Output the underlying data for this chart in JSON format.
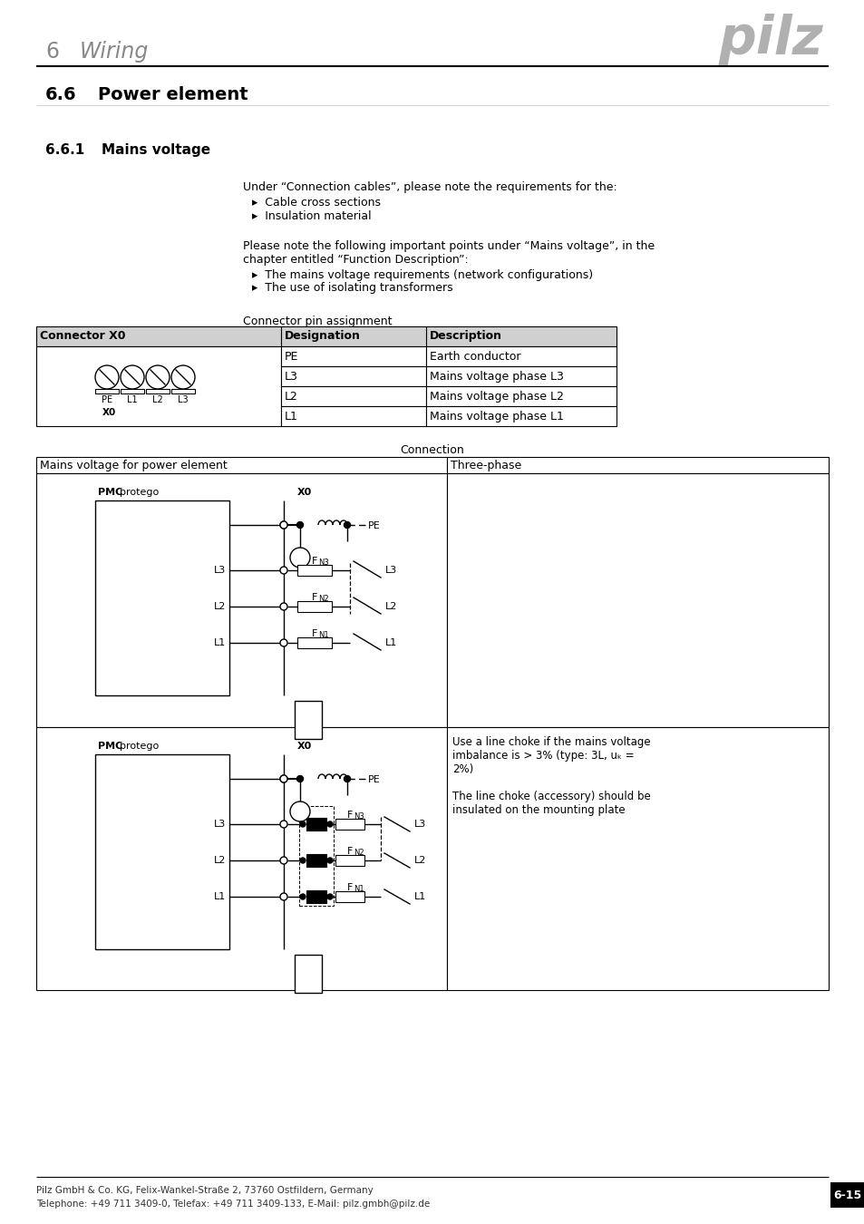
{
  "page_header_number": "6",
  "page_header_title": "Wiring",
  "section_number": "6.6",
  "section_title": "Power element",
  "subsection_number": "6.6.1",
  "subsection_title": "Mains voltage",
  "body_text_1": "Under “Connection cables”, please note the requirements for the:",
  "bullets_1": [
    "Cable cross sections",
    "Insulation material"
  ],
  "body_text_2": "Please note the following important points under “Mains voltage”, in the\nchapter entitled “Function Description”:",
  "bullets_2": [
    "The mains voltage requirements (network configurations)",
    "The use of isolating transformers"
  ],
  "connector_label": "Connector pin assignment",
  "table_headers": [
    "Connector X0",
    "Designation",
    "Description"
  ],
  "table_rows_des": [
    "PE",
    "L3",
    "L2",
    "L1"
  ],
  "table_rows_desc": [
    "Earth conductor",
    "Mains voltage phase L3",
    "Mains voltage phase L2",
    "Mains voltage phase L1"
  ],
  "connection_label": "Connection",
  "conn_table_col1": "Mains voltage for power element",
  "conn_table_col2": "Three-phase",
  "note_bottom": "Use a line choke if the mains voltage\nimbalance is > 3% (type: 3L, uₖ =\n2%)\n\nThe line choke (accessory) should be\ninsulated on the mounting plate",
  "footer_line1": "Pilz GmbH & Co. KG, Felix-Wankel-Straße 2, 73760 Ostfildern, Germany",
  "footer_line2": "Telephone: +49 711 3409-0, Telefax: +49 711 3409-133, E-Mail: pilz.gmbh@pilz.de",
  "page_number": "6-15",
  "bg_color": "#ffffff"
}
